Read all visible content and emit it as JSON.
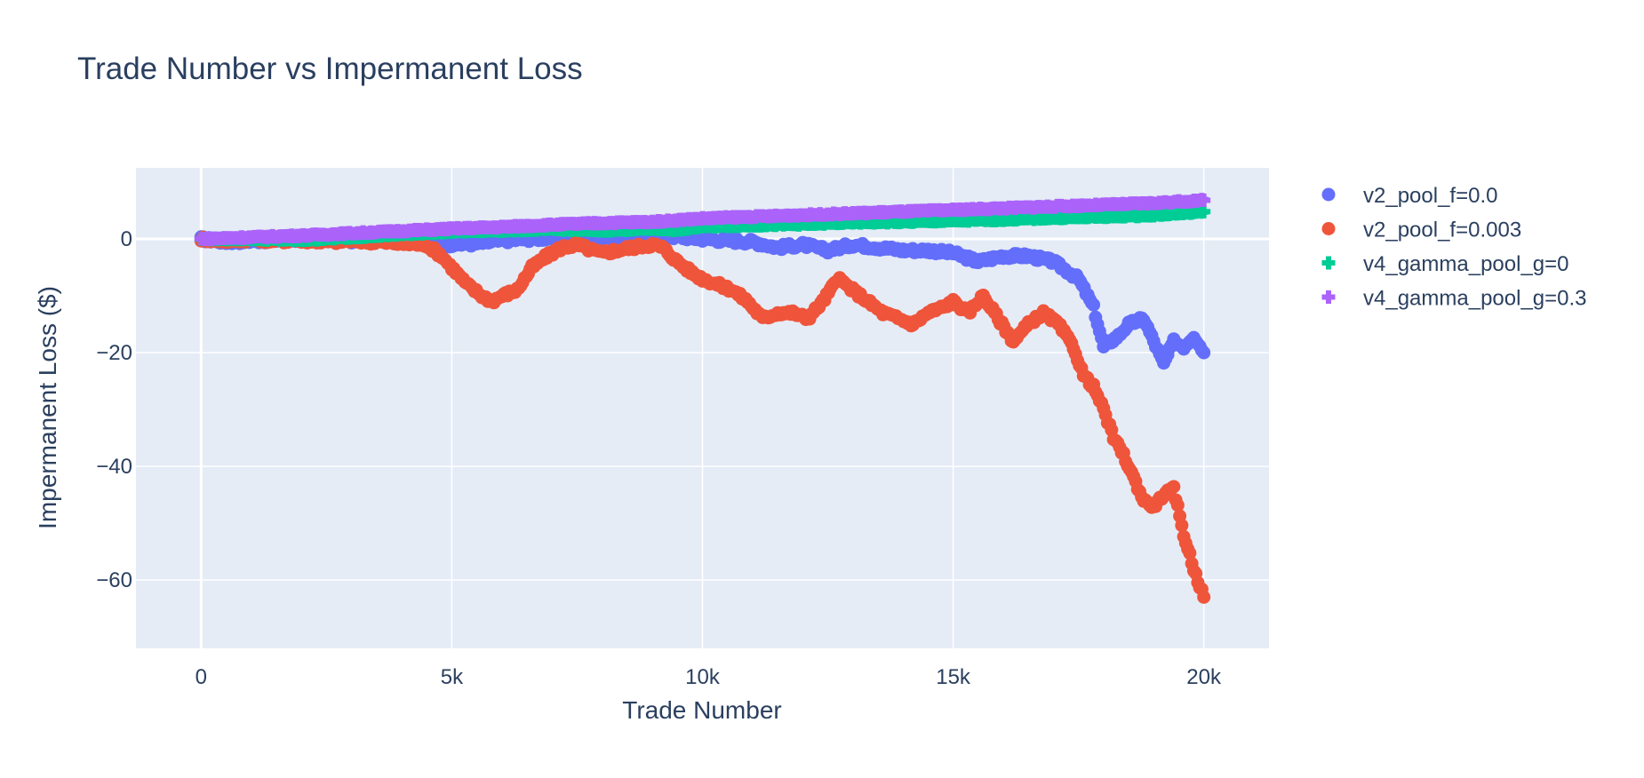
{
  "chart_data": {
    "type": "scatter",
    "title": "Trade Number vs Impermanent Loss",
    "xlabel": "Trade Number",
    "ylabel": "Impermanent Loss ($)",
    "xlim": [
      -1300,
      21300
    ],
    "ylim": [
      -72,
      12.5
    ],
    "x_ticks": [
      0,
      5000,
      10000,
      15000,
      20000
    ],
    "x_tick_labels": [
      "0",
      "5k",
      "10k",
      "15k",
      "20k"
    ],
    "y_ticks": [
      0,
      -20,
      -40,
      -60
    ],
    "y_tick_labels": [
      "0",
      "−20",
      "−40",
      "−60"
    ],
    "grid": true,
    "legend_position": "right",
    "plot_bg": "#e5ecf6",
    "series": [
      {
        "name": "v2_pool_f=0.0",
        "color": "#636efa",
        "marker": "circle",
        "x": [
          0,
          500,
          1000,
          1500,
          2000,
          2500,
          3000,
          3500,
          4000,
          4500,
          5000,
          5500,
          6000,
          6500,
          7000,
          7500,
          8000,
          8500,
          9000,
          9500,
          10000,
          10500,
          11000,
          11500,
          12000,
          12500,
          13000,
          13500,
          14000,
          14500,
          15000,
          15500,
          16000,
          16500,
          17000,
          17500,
          17800,
          18000,
          18300,
          18500,
          18800,
          19000,
          19200,
          19400,
          19600,
          19800,
          20000
        ],
        "y": [
          0,
          -0.5,
          -0.3,
          -0.2,
          0,
          0,
          -0.3,
          0,
          -0.2,
          -0.4,
          -1,
          -0.8,
          -0.3,
          0,
          0.2,
          0.4,
          0.3,
          0.4,
          0.5,
          0.4,
          0,
          -0.3,
          -0.5,
          -1.5,
          -1,
          -2,
          -1,
          -1.5,
          -2,
          -2,
          -2.5,
          -4,
          -3,
          -3,
          -4,
          -7,
          -12,
          -19,
          -17,
          -15,
          -14,
          -18,
          -22,
          -18,
          -19,
          -17,
          -20
        ]
      },
      {
        "name": "v2_pool_f=0.003",
        "color": "#ef553b",
        "marker": "circle",
        "x": [
          0,
          500,
          1000,
          1500,
          2000,
          2500,
          3000,
          3500,
          4000,
          4500,
          4800,
          5000,
          5300,
          5600,
          5800,
          6000,
          6300,
          6600,
          6900,
          7200,
          7500,
          7800,
          8000,
          8300,
          8600,
          9000,
          9200,
          9500,
          9800,
          10000,
          10300,
          10600,
          10900,
          11200,
          11500,
          11800,
          12100,
          12400,
          12700,
          13000,
          13300,
          13600,
          13900,
          14200,
          14500,
          14800,
          15000,
          15300,
          15600,
          15900,
          16200,
          16500,
          16800,
          17100,
          17400,
          17600,
          17800,
          18000,
          18200,
          18400,
          18600,
          18800,
          19000,
          19200,
          19400,
          19600,
          19800,
          20000
        ],
        "y": [
          0,
          -0.3,
          0,
          -0.3,
          -0.2,
          -0.5,
          -0.3,
          -0.5,
          -0.8,
          -1,
          -3,
          -5,
          -8,
          -10,
          -11,
          -10,
          -9,
          -5,
          -3,
          -1.5,
          -1,
          -2,
          -2.5,
          -2,
          -1.5,
          -1,
          -1.5,
          -4,
          -6,
          -7,
          -8,
          -9,
          -11,
          -14,
          -13,
          -13,
          -14,
          -11,
          -7,
          -9,
          -11,
          -13,
          -14,
          -15,
          -13,
          -12,
          -11,
          -13,
          -10,
          -14,
          -18,
          -15,
          -13,
          -15,
          -19,
          -24,
          -26,
          -30,
          -35,
          -38,
          -42,
          -46,
          -47,
          -45,
          -44,
          -52,
          -58,
          -63
        ]
      },
      {
        "name": "v4_gamma_pool_g=0",
        "color": "#00cc96",
        "marker": "cross",
        "x": [
          0,
          1000,
          2000,
          3000,
          4000,
          5000,
          6000,
          7000,
          8000,
          9000,
          9500,
          10000,
          11000,
          12000,
          13000,
          14000,
          15000,
          16000,
          17000,
          18000,
          19000,
          20000
        ],
        "y": [
          0,
          0,
          -0.2,
          0.3,
          0.8,
          1.3,
          1.5,
          1.7,
          1.5,
          1.8,
          1.6,
          2.2,
          2.4,
          2.6,
          2.9,
          3.0,
          3.2,
          3.4,
          3.7,
          3.9,
          4.2,
          4.8
        ]
      },
      {
        "name": "v4_gamma_pool_g=0.3",
        "color": "#ab63fa",
        "marker": "cross",
        "x": [
          0,
          1000,
          2000,
          3000,
          4000,
          5000,
          6000,
          7000,
          8000,
          9000,
          9500,
          10000,
          11000,
          12000,
          13000,
          14000,
          15000,
          16000,
          17000,
          18000,
          19000,
          20000
        ],
        "y": [
          0,
          0.3,
          0.6,
          1.0,
          1.4,
          1.8,
          2.1,
          2.5,
          2.8,
          3.0,
          3.3,
          3.6,
          3.9,
          4.2,
          4.5,
          4.8,
          5.1,
          5.4,
          5.7,
          6.0,
          6.3,
          6.8
        ]
      }
    ]
  }
}
